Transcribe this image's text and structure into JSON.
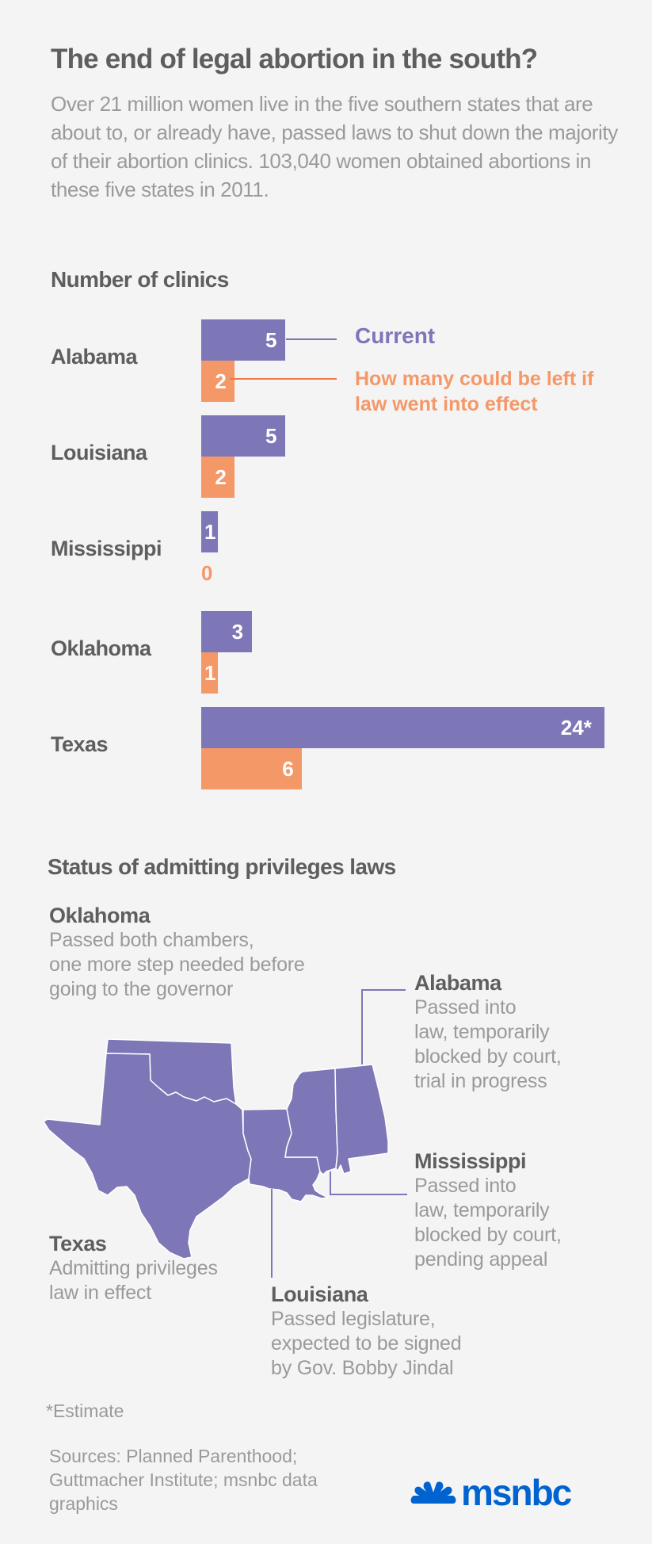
{
  "header": {
    "title": "The end of legal abortion in the south?",
    "subtitle": "Over 21 million women live in the five southern states that are about to, or already have, passed laws to shut down the majority of their abortion clinics. 103,040 women obtained abortions in these five states in 2011."
  },
  "clinics_section": {
    "heading": "Number of clinics",
    "legend": {
      "current": "Current",
      "future": "How many could be left if law went into effect"
    }
  },
  "colors": {
    "current": "#7d77b7",
    "future": "#f59868",
    "text_dark": "#5e5e5e",
    "text_light": "#9a9a9a",
    "brand": "#0063cf"
  },
  "chart_data": {
    "type": "bar",
    "orientation": "horizontal",
    "title": "Number of clinics",
    "xlabel": "",
    "ylabel": "",
    "categories": [
      "Alabama",
      "Louisiana",
      "Mississippi",
      "Oklahoma",
      "Texas"
    ],
    "series": [
      {
        "name": "Current",
        "values": [
          5,
          5,
          1,
          3,
          24
        ],
        "labels": [
          "5",
          "5",
          "1",
          "3",
          "24*"
        ]
      },
      {
        "name": "How many could be left if law went into effect",
        "values": [
          2,
          2,
          0,
          1,
          6
        ],
        "labels": [
          "2",
          "2",
          "0",
          "1",
          "6"
        ]
      }
    ],
    "xlim": [
      0,
      24
    ],
    "grid": false,
    "legend": "right"
  },
  "status_section": {
    "heading": "Status of admitting privileges laws",
    "states": {
      "oklahoma": {
        "name": "Oklahoma",
        "status": [
          "Passed both chambers,",
          "one more step needed before",
          "going to the governor"
        ]
      },
      "alabama": {
        "name": "Alabama",
        "status": [
          "Passed into",
          "law, temporarily",
          "blocked by court,",
          "trial in progress"
        ]
      },
      "mississippi": {
        "name": "Mississippi",
        "status": [
          "Passed into",
          "law, temporarily",
          "blocked by court,",
          "pending appeal"
        ]
      },
      "texas": {
        "name": "Texas",
        "status": [
          "Admitting privileges",
          "law in effect"
        ]
      },
      "louisiana": {
        "name": "Louisiana",
        "status": [
          "Passed legislature,",
          "expected to be signed",
          "by Gov. Bobby Jindal"
        ]
      }
    }
  },
  "footer": {
    "footnote": "*Estimate",
    "sources": "Sources: Planned Parenthood; Guttmacher Institute; msnbc data graphics",
    "logo_text": "msnbc",
    "logo_icon": "nbc-peacock-icon"
  }
}
